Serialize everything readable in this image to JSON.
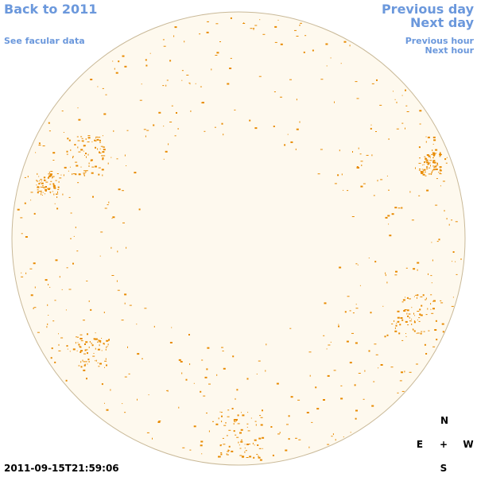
{
  "nav": {
    "back": "Back to 2011",
    "facular": "See facular data",
    "previous_day": "Previous day",
    "next_day": "Next day",
    "previous_hour": "Previous hour",
    "next_hour": "Next hour"
  },
  "timestamp": "2011-09-15T21:59:06",
  "compass": {
    "north": "N",
    "east": "E",
    "center": "+",
    "west": "W",
    "south": "S"
  }
}
